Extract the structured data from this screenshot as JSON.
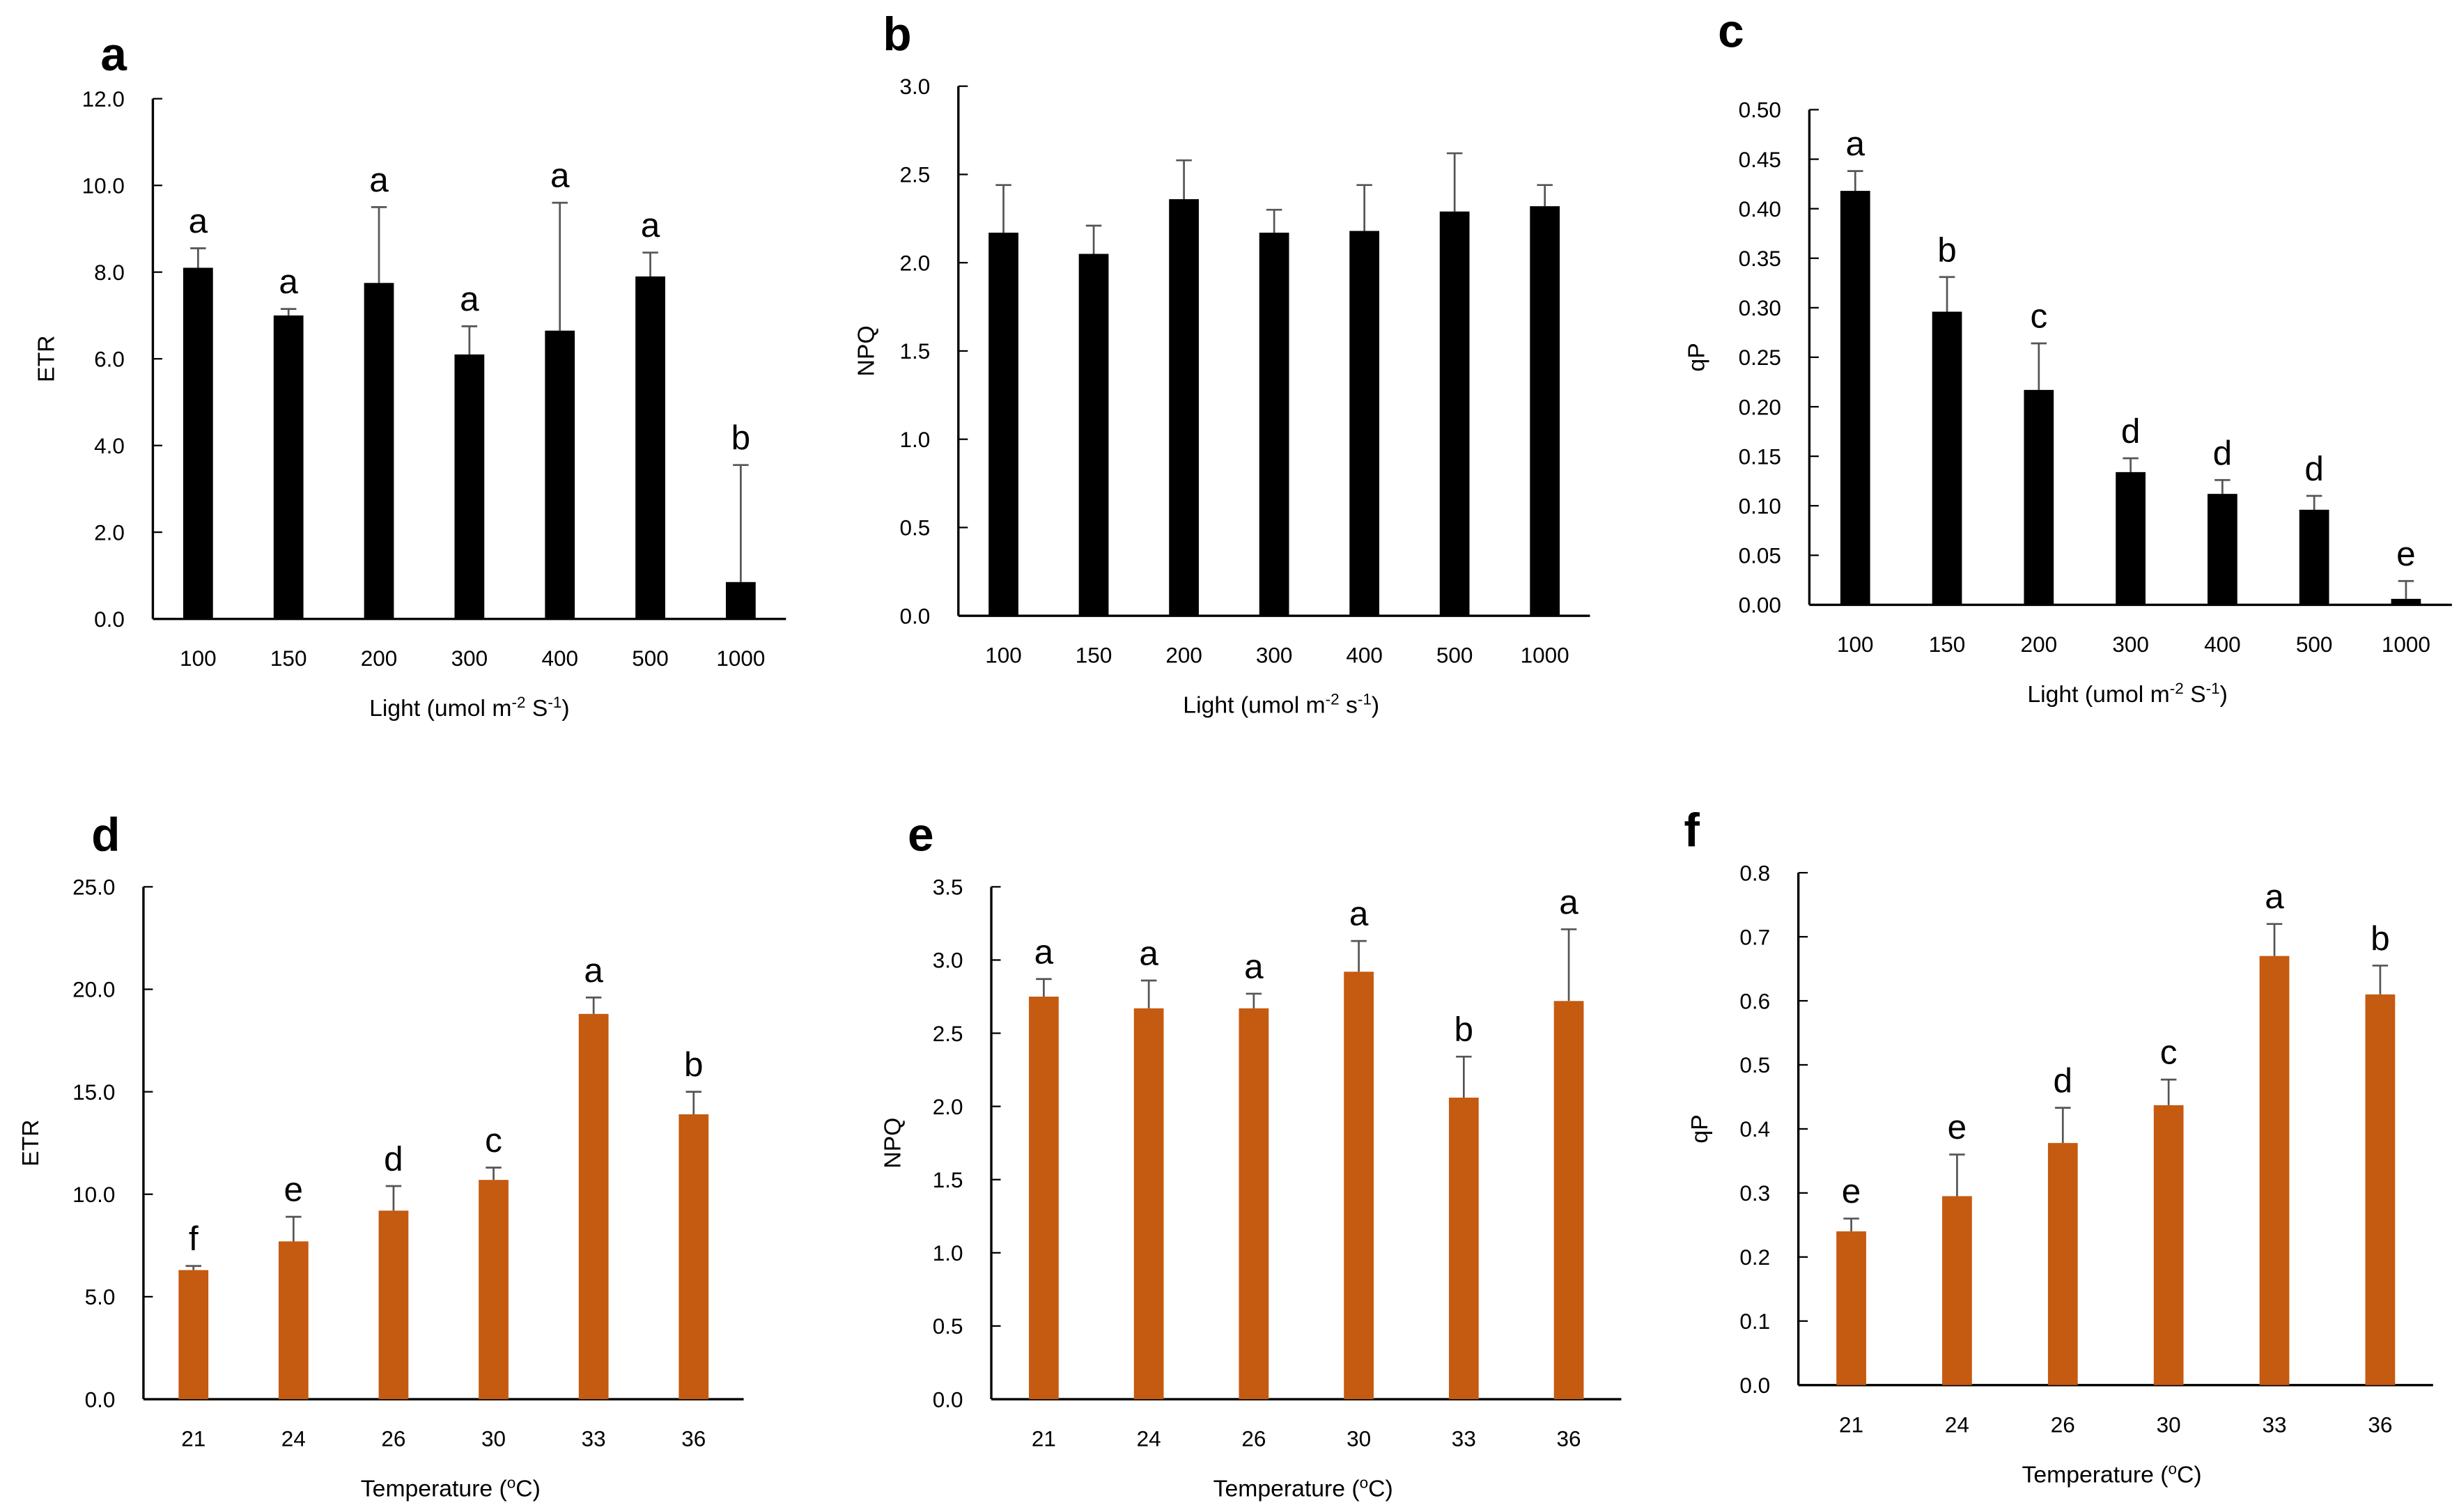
{
  "chart_data": [
    {
      "id": "a",
      "type": "bar",
      "panel_label": "a",
      "categories": [
        "100",
        "150",
        "200",
        "300",
        "400",
        "500",
        "1000"
      ],
      "values": [
        8.1,
        7.0,
        7.75,
        6.1,
        6.65,
        7.9,
        0.85
      ],
      "errors": [
        0.45,
        0.15,
        1.75,
        0.65,
        2.95,
        0.55,
        2.7
      ],
      "letters": [
        "a",
        "a",
        "a",
        "a",
        "a",
        "a",
        "b"
      ],
      "ylabel": "ETR",
      "xlabel": [
        "Light (umol m",
        "-2",
        " S",
        "-1",
        ")"
      ],
      "ylim": [
        0,
        12
      ],
      "ytick_step": 2,
      "ytick_decimals": 1,
      "color": "#000000"
    },
    {
      "id": "b",
      "type": "bar",
      "panel_label": "b",
      "categories": [
        "100",
        "150",
        "200",
        "300",
        "400",
        "500",
        "1000"
      ],
      "values": [
        2.17,
        2.05,
        2.36,
        2.17,
        2.18,
        2.29,
        2.32
      ],
      "errors": [
        0.27,
        0.16,
        0.22,
        0.13,
        0.26,
        0.33,
        0.12
      ],
      "letters": [
        "",
        "",
        "",
        "",
        "",
        "",
        ""
      ],
      "ylabel": "NPQ",
      "xlabel": [
        "Light (umol m",
        "-2",
        " s",
        "-1",
        ")"
      ],
      "ylim": [
        0,
        3
      ],
      "ytick_step": 0.5,
      "ytick_decimals": 1,
      "color": "#000000"
    },
    {
      "id": "c",
      "type": "bar",
      "panel_label": "c",
      "categories": [
        "100",
        "150",
        "200",
        "300",
        "400",
        "500",
        "1000"
      ],
      "values": [
        0.418,
        0.296,
        0.217,
        0.134,
        0.112,
        0.096,
        0.006
      ],
      "errors": [
        0.02,
        0.035,
        0.047,
        0.014,
        0.014,
        0.014,
        0.018
      ],
      "letters": [
        "a",
        "b",
        "c",
        "d",
        "d",
        "d",
        "e"
      ],
      "ylabel": "qP",
      "xlabel": [
        "Light (umol m",
        "-2",
        " S",
        "-1",
        ")"
      ],
      "ylim": [
        0,
        0.5
      ],
      "ytick_step": 0.05,
      "ytick_decimals": 2,
      "color": "#000000"
    },
    {
      "id": "d",
      "type": "bar",
      "panel_label": "d",
      "categories": [
        "21",
        "24",
        "26",
        "30",
        "33",
        "36"
      ],
      "values": [
        6.3,
        7.7,
        9.2,
        10.7,
        18.8,
        13.9
      ],
      "errors": [
        0.2,
        1.2,
        1.2,
        0.6,
        0.8,
        1.1
      ],
      "letters": [
        "f",
        "e",
        "d",
        "c",
        "a",
        "b"
      ],
      "ylabel": "ETR",
      "xlabel": [
        "Temperature  (",
        "o",
        "C)",
        "",
        ""
      ],
      "ylim": [
        0,
        25
      ],
      "ytick_step": 5,
      "ytick_decimals": 1,
      "color": "#C55A11"
    },
    {
      "id": "e",
      "type": "bar",
      "panel_label": "e",
      "categories": [
        "21",
        "24",
        "26",
        "30",
        "33",
        "36"
      ],
      "values": [
        2.75,
        2.67,
        2.67,
        2.92,
        2.06,
        2.72
      ],
      "errors": [
        0.12,
        0.19,
        0.1,
        0.21,
        0.28,
        0.49
      ],
      "letters": [
        "a",
        "a",
        "a",
        "a",
        "b",
        "a"
      ],
      "ylabel": "NPQ",
      "xlabel": [
        "Temperature  (",
        "o",
        "C)",
        "",
        ""
      ],
      "ylim": [
        0,
        3.5
      ],
      "ytick_step": 0.5,
      "ytick_decimals": 1,
      "color": "#C55A11"
    },
    {
      "id": "f",
      "type": "bar",
      "panel_label": "f",
      "categories": [
        "21",
        "24",
        "26",
        "30",
        "33",
        "36"
      ],
      "values": [
        0.24,
        0.295,
        0.378,
        0.437,
        0.67,
        0.61
      ],
      "errors": [
        0.02,
        0.065,
        0.055,
        0.04,
        0.05,
        0.045
      ],
      "letters": [
        "e",
        "e",
        "d",
        "c",
        "a",
        "b"
      ],
      "ylabel": "qP",
      "xlabel": [
        "Temperature  (",
        "o",
        "C)",
        "",
        ""
      ],
      "ylim": [
        0,
        0.8
      ],
      "ytick_step": 0.1,
      "ytick_decimals": 1,
      "color": "#C55A11"
    }
  ]
}
